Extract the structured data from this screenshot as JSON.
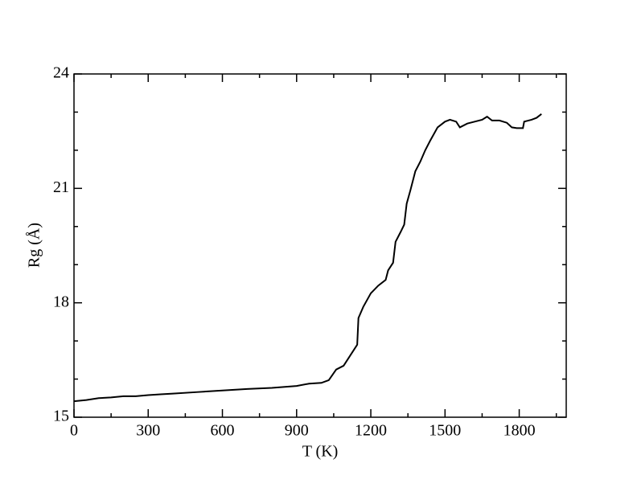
{
  "chart_data": {
    "type": "line",
    "xlabel": "T (K)",
    "ylabel": "Rg (Å)",
    "x": [
      0,
      50,
      100,
      150,
      200,
      250,
      300,
      350,
      400,
      500,
      600,
      700,
      800,
      900,
      950,
      1000,
      1030,
      1060,
      1090,
      1120,
      1145,
      1150,
      1170,
      1200,
      1230,
      1260,
      1270,
      1280,
      1290,
      1300,
      1320,
      1335,
      1345,
      1360,
      1380,
      1400,
      1420,
      1440,
      1470,
      1500,
      1520,
      1545,
      1560,
      1590,
      1620,
      1650,
      1670,
      1690,
      1720,
      1750,
      1770,
      1790,
      1815,
      1820,
      1850,
      1870,
      1890
    ],
    "series": [
      {
        "name": null,
        "color": "#000000",
        "values": [
          15.42,
          15.45,
          15.5,
          15.52,
          15.55,
          15.55,
          15.58,
          15.6,
          15.62,
          15.66,
          15.7,
          15.74,
          15.77,
          15.82,
          15.88,
          15.9,
          15.97,
          16.25,
          16.35,
          16.65,
          16.9,
          17.6,
          17.9,
          18.25,
          18.45,
          18.6,
          18.85,
          18.95,
          19.05,
          19.6,
          19.85,
          20.05,
          20.6,
          20.95,
          21.45,
          21.7,
          22.0,
          22.25,
          22.6,
          22.75,
          22.8,
          22.75,
          22.6,
          22.7,
          22.75,
          22.8,
          22.88,
          22.78,
          22.78,
          22.72,
          22.6,
          22.58,
          22.58,
          22.75,
          22.8,
          22.85,
          22.95
        ]
      }
    ],
    "xlim": [
      0,
      1990
    ],
    "xticks": [
      0,
      300,
      600,
      900,
      1200,
      1500,
      1800
    ],
    "xminorticks": [
      150,
      450,
      750,
      1050,
      1350,
      1650,
      1950
    ],
    "ylim": [
      15,
      24
    ],
    "yticks": [
      15,
      18,
      21,
      24
    ],
    "yminorticks": [
      16,
      17,
      19,
      20,
      22,
      23
    ]
  }
}
